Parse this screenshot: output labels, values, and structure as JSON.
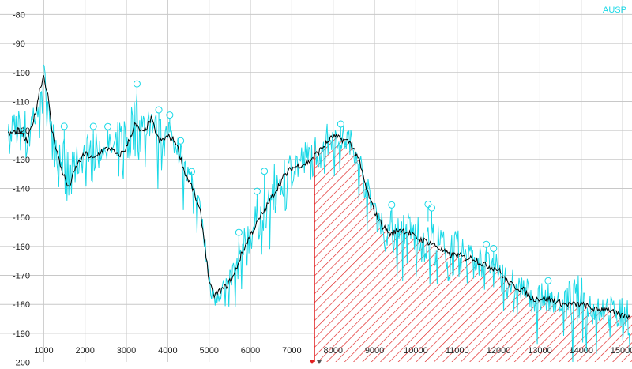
{
  "chart_data": {
    "type": "line",
    "title": "",
    "xlabel": "",
    "ylabel": "",
    "xlim": [
      0,
      15200
    ],
    "ylim": [
      -200,
      -76
    ],
    "x_ticks": [
      1000,
      2000,
      3000,
      4000,
      5000,
      6000,
      7000,
      8000,
      9000,
      10000,
      11000,
      12000,
      13000,
      14000,
      15000
    ],
    "y_ticks": [
      -80,
      -90,
      -100,
      -110,
      -120,
      -130,
      -140,
      -150,
      -160,
      -170,
      -180,
      -190,
      -200
    ],
    "grid": true,
    "legend": {
      "position": "top-right",
      "entries": [
        "AUSP"
      ]
    },
    "colors": {
      "spectrum": "#19d8e6",
      "smoothed": "#000000",
      "region": "#e02020",
      "grid": "#c8c8c8"
    },
    "shaded_region": {
      "x_start": 7550,
      "x_end": 15200,
      "pattern": "diagonal-hatch"
    },
    "series": [
      {
        "name": "AUSP",
        "x": [
          0,
          300,
          600,
          900,
          1000,
          1100,
          1300,
          1500,
          1700,
          1900,
          2100,
          2300,
          2500,
          2700,
          2900,
          3100,
          3300,
          3450,
          3600,
          3800,
          4000,
          4200,
          4400,
          4600,
          4800,
          4900,
          5000,
          5100,
          5300,
          5500,
          5700,
          5900,
          6100,
          6300,
          6500,
          6700,
          6900,
          7100,
          7300,
          7500,
          7700,
          7900,
          8100,
          8300,
          8500,
          8700,
          8900,
          9100,
          9300,
          9500,
          9700,
          9900,
          10100,
          10300,
          10500,
          10700,
          10900,
          11100,
          11300,
          11500,
          11700,
          11900,
          12100,
          12300,
          12500,
          12700,
          12900,
          13100,
          13300,
          13500,
          13700,
          13900,
          14100,
          14300,
          14500,
          14700,
          14900,
          15200
        ],
        "values": [
          -118,
          -112,
          -110,
          -100,
          -97,
          -102,
          -112,
          -120,
          -126,
          -122,
          -118,
          -120,
          -122,
          -118,
          -110,
          -106,
          -104,
          -112,
          -110,
          -114,
          -116,
          -118,
          -128,
          -136,
          -146,
          -156,
          -166,
          -172,
          -170,
          -166,
          -158,
          -150,
          -144,
          -138,
          -132,
          -127,
          -126,
          -124,
          -122,
          -120,
          -118,
          -116,
          -118,
          -122,
          -134,
          -144,
          -150,
          -150,
          -147,
          -145,
          -146,
          -147,
          -146,
          -148,
          -150,
          -150,
          -152,
          -154,
          -156,
          -158,
          -160,
          -163,
          -166,
          -166,
          -168,
          -170,
          -172,
          -174,
          -175,
          -173,
          -170,
          -168,
          -170,
          -173,
          -174,
          -176,
          -176,
          -174
        ]
      },
      {
        "name": "",
        "x": [
          0,
          200,
          400,
          600,
          800,
          900,
          1000,
          1100,
          1200,
          1400,
          1600,
          1800,
          2000,
          2200,
          2400,
          2600,
          2800,
          3000,
          3200,
          3400,
          3600,
          3800,
          4000,
          4200,
          4400,
          4600,
          4800,
          4900,
          5000,
          5100,
          5200,
          5400,
          5600,
          5800,
          6000,
          6200,
          6400,
          6600,
          6800,
          7000,
          7200,
          7400,
          7600,
          7800,
          8000,
          8200,
          8400,
          8600,
          8800,
          9000,
          9200,
          9400,
          9600,
          9800,
          10000,
          10200,
          10400,
          10600,
          10800,
          11000,
          11200,
          11400,
          11600,
          11800,
          12000,
          12200,
          12400,
          12600,
          12800,
          13000,
          13200,
          13400,
          13600,
          13800,
          14000,
          14200,
          14400,
          14600,
          14800,
          15000,
          15200
        ],
        "values": [
          -122,
          -121,
          -120,
          -124,
          -114,
          -106,
          -101,
          -108,
          -120,
          -132,
          -140,
          -132,
          -128,
          -130,
          -127,
          -126,
          -129,
          -126,
          -118,
          -121,
          -116,
          -124,
          -122,
          -124,
          -134,
          -140,
          -149,
          -160,
          -172,
          -177,
          -176,
          -174,
          -170,
          -162,
          -156,
          -151,
          -146,
          -141,
          -136,
          -133,
          -132,
          -131,
          -128,
          -125,
          -122,
          -123,
          -124,
          -129,
          -140,
          -148,
          -153,
          -156,
          -154,
          -155,
          -157,
          -158,
          -159,
          -161,
          -163,
          -163,
          -164,
          -164,
          -166,
          -167,
          -168,
          -172,
          -174,
          -175,
          -178,
          -178,
          -178,
          -179,
          -180,
          -180,
          -180,
          -181,
          -182,
          -181,
          -183,
          -184,
          -184
        ]
      }
    ]
  }
}
